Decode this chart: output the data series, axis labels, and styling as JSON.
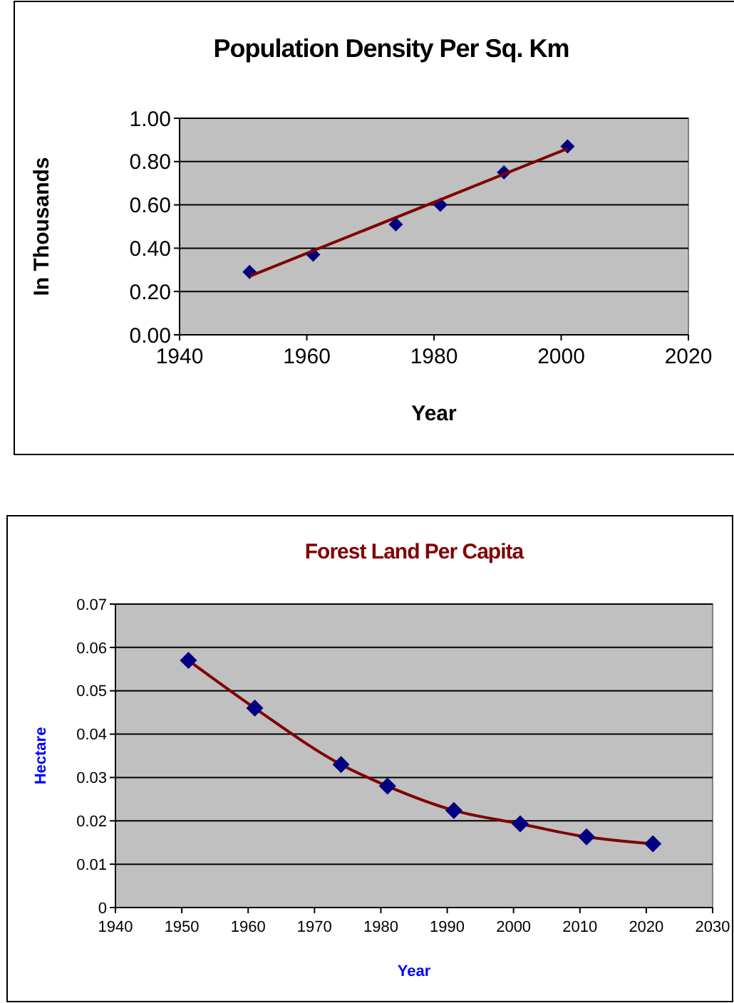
{
  "chart_data": [
    {
      "type": "scatter",
      "title": "Population Density Per Sq. Km",
      "xlabel": "Year",
      "ylabel": "In Thousands",
      "xlim": [
        1940,
        2020
      ],
      "xticks": [
        1940,
        1960,
        1980,
        2000,
        2020
      ],
      "ylim": [
        0,
        1
      ],
      "yticks": [
        {
          "value": 0,
          "label": "0.00"
        },
        {
          "value": 0.2,
          "label": "0.20"
        },
        {
          "value": 0.4,
          "label": "0.40"
        },
        {
          "value": 0.6,
          "label": "0.60"
        },
        {
          "value": 0.8,
          "label": "0.80"
        },
        {
          "value": 1,
          "label": "1.00"
        }
      ],
      "grid": "y",
      "series": [
        {
          "color": "#000080",
          "marker": "diamond",
          "x": [
            1951,
            1961,
            1974,
            1981,
            1991,
            2001
          ],
          "values": [
            0.29,
            0.37,
            0.51,
            0.6,
            0.75,
            0.87
          ]
        },
        {
          "type": "line",
          "color": "#800000",
          "marker": "none",
          "x": [
            1951,
            2001
          ],
          "values": [
            0.27,
            0.86
          ]
        }
      ]
    },
    {
      "type": "line",
      "title": "Forest Land Per Capita",
      "xlabel": "Year",
      "ylabel": "Hectare",
      "xlim": [
        1940,
        2030
      ],
      "xticks": [
        1940,
        1950,
        1960,
        1970,
        1980,
        1990,
        2000,
        2010,
        2020,
        2030
      ],
      "ylim": [
        0,
        0.07
      ],
      "yticks": [
        0,
        0.01,
        0.02,
        0.03,
        0.04,
        0.05,
        0.06,
        0.07
      ],
      "grid": "y",
      "series": [
        {
          "color": "#800000",
          "marker": "diamond",
          "x": [
            1951,
            1961,
            1974,
            1981,
            1991,
            2001,
            2011,
            2021
          ],
          "values": [
            0.057,
            0.046,
            0.033,
            0.028,
            0.0224,
            0.0193,
            0.0163,
            0.0147
          ]
        }
      ]
    }
  ]
}
